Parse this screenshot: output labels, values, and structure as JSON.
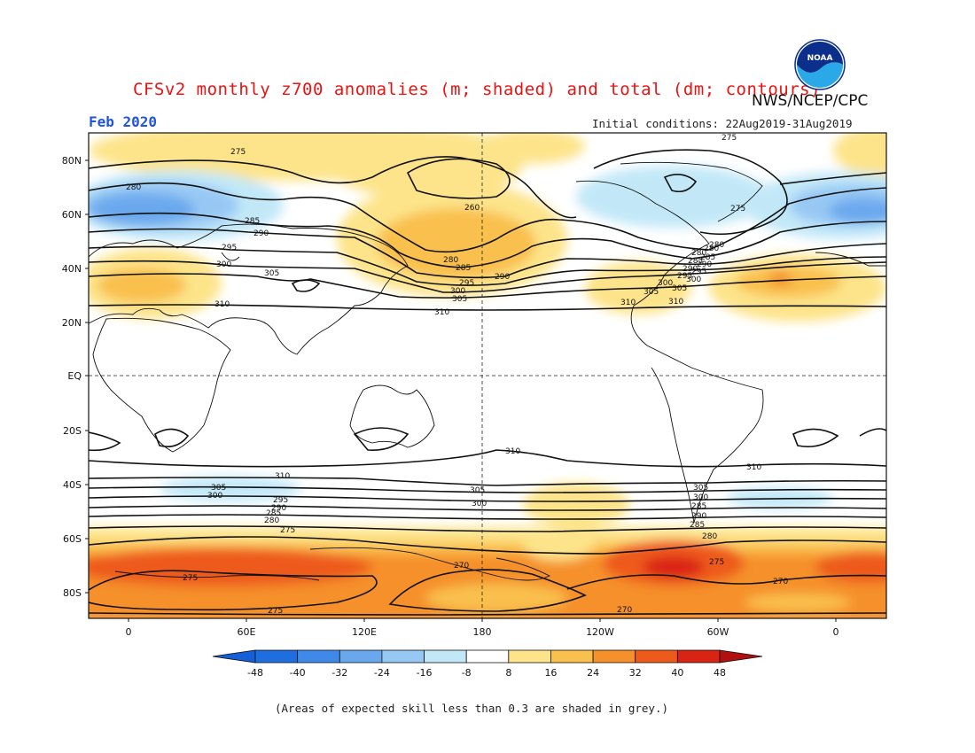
{
  "title": "CFSv2 monthly z700 anomalies (m; shaded) and total (dm; contours)",
  "agency": "NWS/NCEP/CPC",
  "logo_text": "NOAA",
  "month_label": "Feb 2020",
  "initial_conditions": "Initial conditions: 22Aug2019-31Aug2019",
  "footnote": "(Areas of expected skill less than 0.3 are shaded in grey.)",
  "map": {
    "lat_ticks": [
      "80N",
      "60N",
      "40N",
      "20N",
      "EQ",
      "20S",
      "40S",
      "60S",
      "80S"
    ],
    "lon_ticks": [
      "0",
      "60E",
      "120E",
      "180",
      "120W",
      "60W",
      "0"
    ]
  },
  "colorbar": {
    "levels": [
      "-48",
      "-40",
      "-32",
      "-24",
      "-16",
      "-8",
      "8",
      "16",
      "24",
      "32",
      "40",
      "48"
    ],
    "colors": [
      "#1e6ee0",
      "#3f8ae8",
      "#6aa8ee",
      "#97c8f4",
      "#c2e8f8",
      "#ffffff",
      "#fde48a",
      "#f9c04e",
      "#f5902a",
      "#ee5a1a",
      "#d92414"
    ],
    "under_color": "#1560d8",
    "over_color": "#b01010"
  },
  "contour_labels": [
    "275",
    "280",
    "285",
    "290",
    "295",
    "300",
    "305",
    "310",
    "280",
    "285",
    "290",
    "295",
    "300",
    "305",
    "310",
    "260",
    "280",
    "285",
    "290",
    "295",
    "300",
    "305",
    "310",
    "275",
    "280",
    "280",
    "285",
    "290",
    "295",
    "300",
    "305",
    "310",
    "275",
    "310",
    "310",
    "305",
    "300",
    "295",
    "290",
    "285",
    "280",
    "275",
    "305",
    "300",
    "310",
    "305",
    "300",
    "285",
    "290",
    "285",
    "280",
    "270",
    "275",
    "270",
    "275",
    "270",
    "275"
  ]
}
